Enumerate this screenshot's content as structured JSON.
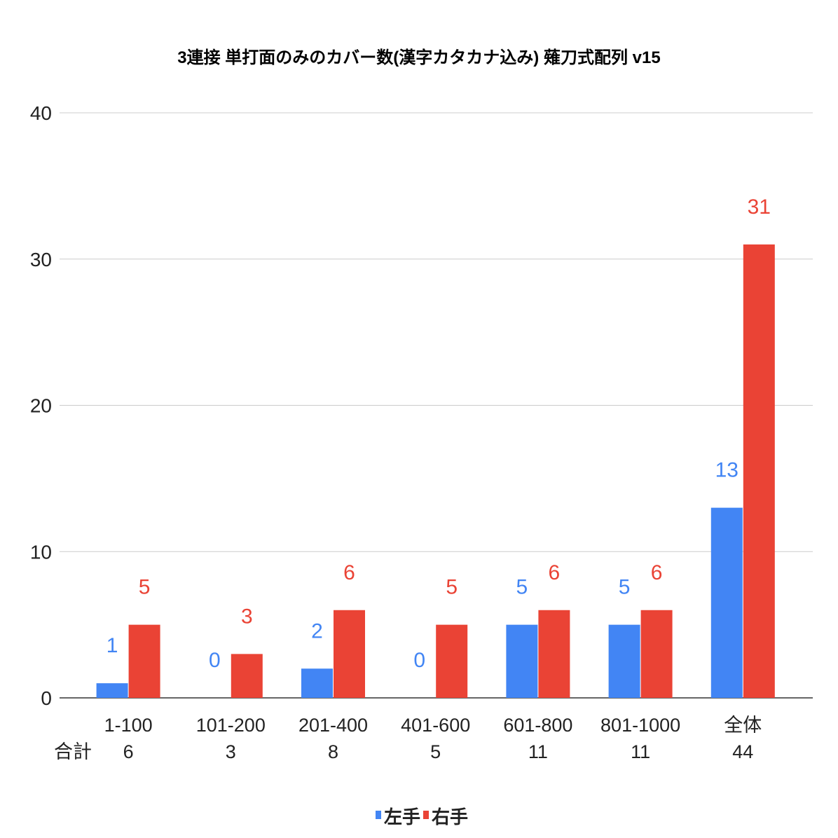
{
  "chart_data": {
    "type": "bar",
    "title": "3連接 単打面のみのカバー数(漢字カタカナ込み) 薙刀式配列 v15",
    "xlabel": "",
    "ylabel": "",
    "ylim": [
      0,
      40
    ],
    "yticks": [
      "0",
      "10",
      "20",
      "30",
      "40"
    ],
    "grid": true,
    "legend_position": "bottom",
    "categories": [
      "1-100",
      "101-200",
      "201-400",
      "401-600",
      "601-800",
      "801-1000",
      "全体"
    ],
    "row_label": "合計",
    "totals": [
      "6",
      "3",
      "8",
      "5",
      "11",
      "11",
      "44"
    ],
    "series": [
      {
        "name": "左手",
        "color": "#4285f4",
        "values": [
          1,
          0,
          2,
          0,
          5,
          5,
          13
        ]
      },
      {
        "name": "右手",
        "color": "#ea4335",
        "values": [
          5,
          3,
          6,
          5,
          6,
          6,
          31
        ]
      }
    ]
  }
}
